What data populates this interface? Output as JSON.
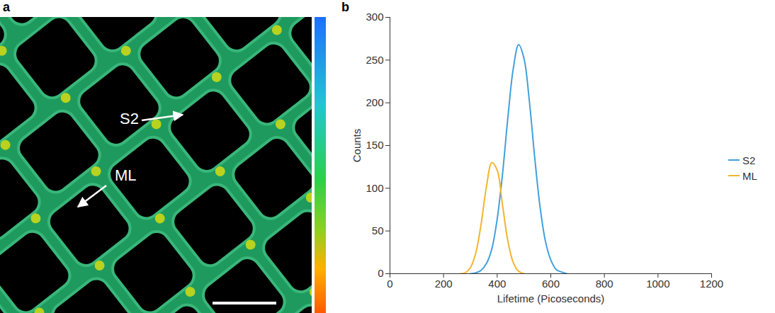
{
  "chart_data": [
    {
      "type": "image",
      "title": "a",
      "annotations": [
        "S2",
        "ML"
      ]
    },
    {
      "type": "line",
      "title": "b",
      "xlabel": "Lifetime (Picoseconds)",
      "ylabel": "Counts",
      "x": [
        260,
        280,
        300,
        320,
        340,
        360,
        380,
        400,
        420,
        440,
        460,
        480,
        500,
        520,
        540,
        560,
        580,
        600,
        620,
        640,
        660
      ],
      "series": [
        {
          "name": "S2",
          "color": "#41a0dc",
          "values": [
            null,
            null,
            0,
            1,
            4,
            12,
            29,
            64,
            117,
            183,
            240,
            268,
            252,
            202,
            136,
            78,
            38,
            16,
            5,
            2,
            0
          ]
        },
        {
          "name": "ML",
          "color": "#f2b530",
          "values": [
            0,
            1,
            7,
            24,
            58,
            102,
            130,
            121,
            80,
            38,
            13,
            3,
            0,
            null,
            null,
            null,
            null,
            null,
            null,
            null,
            null
          ]
        }
      ],
      "xlim": [
        0,
        1200
      ],
      "xticks": [
        0,
        200,
        400,
        600,
        800,
        1000,
        1200
      ],
      "ylim": [
        0,
        300
      ],
      "yticks": [
        0,
        50,
        100,
        150,
        200,
        250,
        300
      ],
      "grid": false,
      "legend": "right"
    }
  ]
}
